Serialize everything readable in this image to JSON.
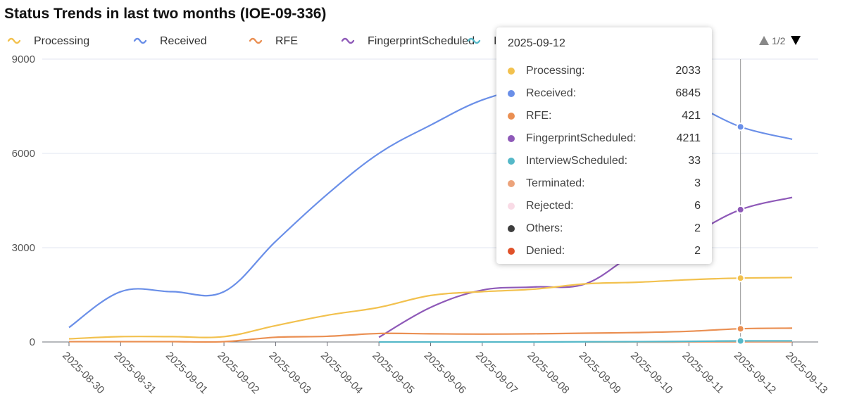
{
  "chart_data": {
    "type": "line",
    "title": "Status Trends in last two months (IOE-09-336)",
    "categories": [
      "2025-08-30",
      "2025-08-31",
      "2025-09-01",
      "2025-09-02",
      "2025-09-03",
      "2025-09-04",
      "2025-09-05",
      "2025-09-06",
      "2025-09-07",
      "2025-09-08",
      "2025-09-09",
      "2025-09-10",
      "2025-09-11",
      "2025-09-12",
      "2025-09-13"
    ],
    "ylim": [
      0,
      9000
    ],
    "yticks": [
      "0",
      "3000",
      "6000",
      "9000"
    ],
    "grid": true,
    "legend": {
      "position": "top",
      "page": "1/2"
    },
    "series": [
      {
        "name": "Processing",
        "color": "#f2c14e",
        "values": [
          100,
          170,
          170,
          170,
          520,
          850,
          1100,
          1480,
          1600,
          1680,
          1850,
          1900,
          1980,
          2033,
          2050
        ]
      },
      {
        "name": "Received",
        "color": "#6a8fe8",
        "values": [
          460,
          1600,
          1600,
          1600,
          3200,
          4700,
          6000,
          6900,
          7700,
          8100,
          8200,
          8000,
          7600,
          6845,
          6450
        ]
      },
      {
        "name": "RFE",
        "color": "#ea8f52",
        "values": [
          10,
          10,
          10,
          10,
          150,
          180,
          270,
          260,
          250,
          260,
          280,
          300,
          340,
          421,
          440
        ]
      },
      {
        "name": "FingerprintScheduled",
        "color": "#8e59b8",
        "values": [
          null,
          null,
          null,
          null,
          null,
          null,
          150,
          1100,
          1650,
          1750,
          1850,
          2850,
          3400,
          4211,
          4600
        ]
      },
      {
        "name": "InterviewScheduled",
        "color": "#55b8c8",
        "values": [
          null,
          null,
          null,
          null,
          null,
          null,
          0,
          0,
          0,
          0,
          5,
          10,
          20,
          33,
          35
        ]
      },
      {
        "name": "Terminated",
        "color": "#eca37b",
        "values": [
          null,
          null,
          null,
          null,
          null,
          null,
          null,
          null,
          null,
          null,
          0,
          1,
          2,
          3,
          3
        ]
      },
      {
        "name": "Rejected",
        "color": "#f9dbe6",
        "values": [
          null,
          null,
          null,
          null,
          null,
          null,
          null,
          null,
          null,
          null,
          0,
          2,
          4,
          6,
          6
        ]
      },
      {
        "name": "Others",
        "color": "#3d3d3d",
        "values": [
          null,
          null,
          null,
          null,
          null,
          null,
          null,
          null,
          null,
          null,
          null,
          0,
          1,
          2,
          2
        ]
      },
      {
        "name": "Denied",
        "color": "#e0522a",
        "values": [
          null,
          null,
          null,
          null,
          null,
          null,
          null,
          null,
          null,
          null,
          null,
          null,
          1,
          2,
          2
        ]
      }
    ],
    "legend_visible": [
      "Processing",
      "Received",
      "RFE",
      "FingerprintScheduled",
      "InterviewScheduled"
    ]
  },
  "tooltip": {
    "date": "2025-09-12",
    "rows": [
      {
        "name": "Processing:",
        "value": "2033",
        "color": "#f2c14e"
      },
      {
        "name": "Received:",
        "value": "6845",
        "color": "#6a8fe8"
      },
      {
        "name": "RFE:",
        "value": "421",
        "color": "#ea8f52"
      },
      {
        "name": "FingerprintScheduled:",
        "value": "4211",
        "color": "#8e59b8"
      },
      {
        "name": "InterviewScheduled:",
        "value": "33",
        "color": "#55b8c8"
      },
      {
        "name": "Terminated:",
        "value": "3",
        "color": "#eca37b"
      },
      {
        "name": "Rejected:",
        "value": "6",
        "color": "#f9dbe6"
      },
      {
        "name": "Others:",
        "value": "2",
        "color": "#3d3d3d"
      },
      {
        "name": "Denied:",
        "value": "2",
        "color": "#e0522a"
      }
    ]
  }
}
